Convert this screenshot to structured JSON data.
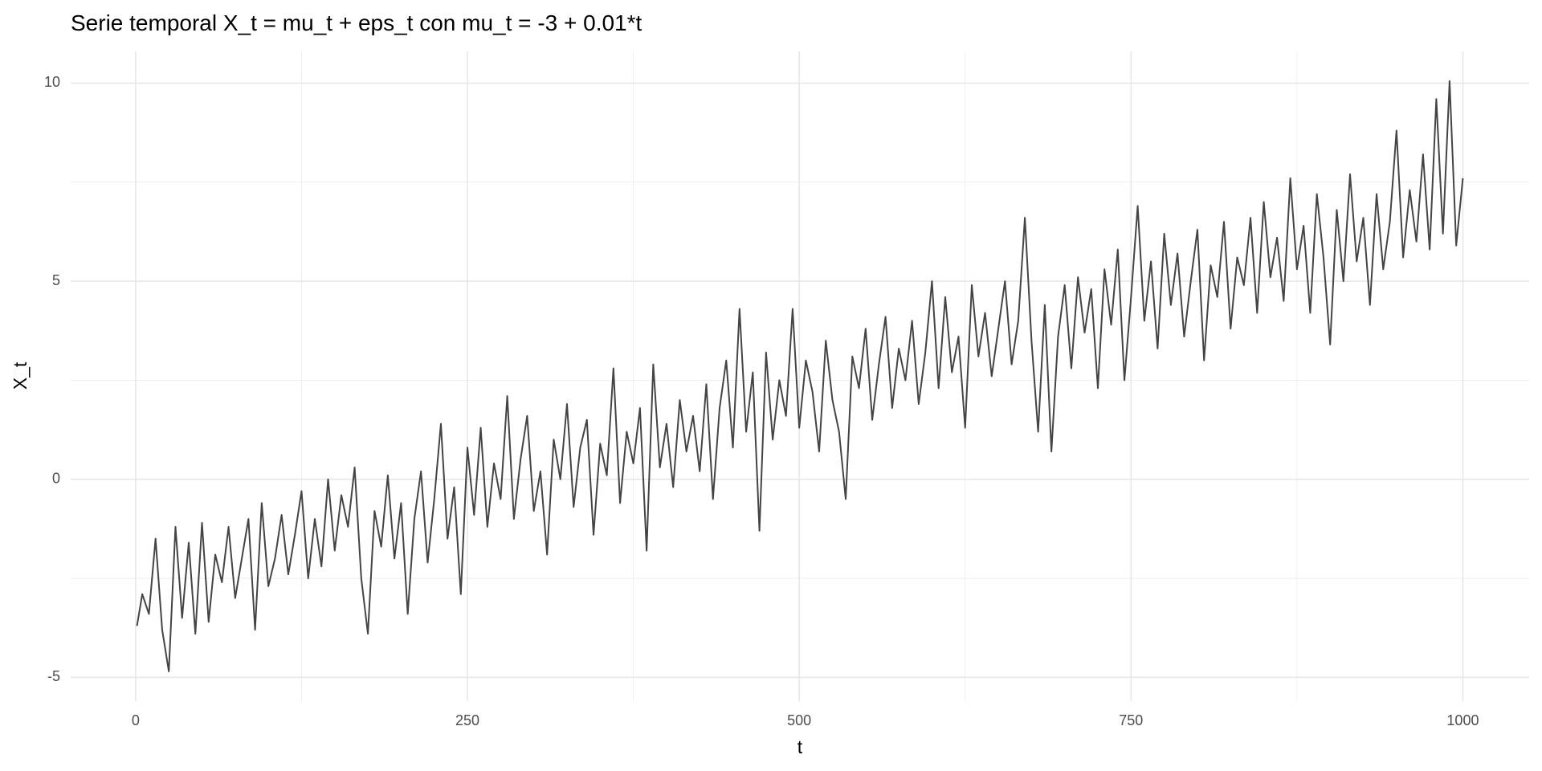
{
  "chart_data": {
    "type": "line",
    "title": "Serie temporal X_t = mu_t + eps_t con mu_t = -3 + 0.01*t",
    "x_label": "t",
    "y_label": "X_t",
    "color": "#444444",
    "x": [
      1,
      5,
      10,
      15,
      20,
      25,
      30,
      35,
      40,
      45,
      50,
      55,
      60,
      65,
      70,
      75,
      80,
      85,
      90,
      95,
      100,
      105,
      110,
      115,
      120,
      125,
      130,
      135,
      140,
      145,
      150,
      155,
      160,
      165,
      170,
      175,
      180,
      185,
      190,
      195,
      200,
      205,
      210,
      215,
      220,
      225,
      230,
      235,
      240,
      245,
      250,
      255,
      260,
      265,
      270,
      275,
      280,
      285,
      290,
      295,
      300,
      305,
      310,
      315,
      320,
      325,
      330,
      335,
      340,
      345,
      350,
      355,
      360,
      365,
      370,
      375,
      380,
      385,
      390,
      395,
      400,
      405,
      410,
      415,
      420,
      425,
      430,
      435,
      440,
      445,
      450,
      455,
      460,
      465,
      470,
      475,
      480,
      485,
      490,
      495,
      500,
      505,
      510,
      515,
      520,
      525,
      530,
      535,
      540,
      545,
      550,
      555,
      560,
      565,
      570,
      575,
      580,
      585,
      590,
      595,
      600,
      605,
      610,
      615,
      620,
      625,
      630,
      635,
      640,
      645,
      650,
      655,
      660,
      665,
      670,
      675,
      680,
      685,
      690,
      695,
      700,
      705,
      710,
      715,
      720,
      725,
      730,
      735,
      740,
      745,
      750,
      755,
      760,
      765,
      770,
      775,
      780,
      785,
      790,
      795,
      800,
      805,
      810,
      815,
      820,
      825,
      830,
      835,
      840,
      845,
      850,
      855,
      860,
      865,
      870,
      875,
      880,
      885,
      890,
      895,
      900,
      905,
      910,
      915,
      920,
      925,
      930,
      935,
      940,
      945,
      950,
      955,
      960,
      965,
      970,
      975,
      980,
      985,
      990,
      995,
      1000
    ],
    "values": [
      -3.7,
      -2.9,
      -3.4,
      -1.5,
      -3.8,
      -4.85,
      -1.2,
      -3.5,
      -1.6,
      -3.9,
      -1.1,
      -3.6,
      -1.9,
      -2.6,
      -1.2,
      -3.0,
      -2.0,
      -1.0,
      -3.8,
      -0.6,
      -2.7,
      -2.0,
      -0.9,
      -2.4,
      -1.4,
      -0.3,
      -2.5,
      -1.0,
      -2.2,
      0.0,
      -1.8,
      -0.4,
      -1.2,
      0.3,
      -2.5,
      -3.9,
      -0.8,
      -1.7,
      0.1,
      -2.0,
      -0.6,
      -3.4,
      -1.0,
      0.2,
      -2.1,
      -0.5,
      1.4,
      -1.5,
      -0.2,
      -2.9,
      0.8,
      -0.9,
      1.3,
      -1.2,
      0.4,
      -0.5,
      2.1,
      -1.0,
      0.5,
      1.6,
      -0.8,
      0.2,
      -1.9,
      1.0,
      0.0,
      1.9,
      -0.7,
      0.8,
      1.5,
      -1.4,
      0.9,
      0.1,
      2.8,
      -0.6,
      1.2,
      0.4,
      1.8,
      -1.8,
      2.9,
      0.3,
      1.4,
      -0.2,
      2.0,
      0.7,
      1.6,
      0.2,
      2.4,
      -0.5,
      1.8,
      3.0,
      0.8,
      4.3,
      1.2,
      2.7,
      -1.3,
      3.2,
      1.0,
      2.5,
      1.6,
      4.3,
      1.3,
      3.0,
      2.2,
      0.7,
      3.5,
      2.0,
      1.2,
      -0.5,
      3.1,
      2.3,
      3.8,
      1.5,
      2.9,
      4.1,
      1.8,
      3.3,
      2.5,
      4.0,
      1.9,
      3.2,
      5.0,
      2.3,
      4.6,
      2.7,
      3.6,
      1.3,
      4.9,
      3.1,
      4.2,
      2.6,
      3.8,
      5.0,
      2.9,
      4.0,
      6.6,
      3.5,
      1.2,
      4.4,
      0.7,
      3.6,
      4.9,
      2.8,
      5.1,
      3.7,
      4.8,
      2.3,
      5.3,
      3.9,
      5.8,
      2.5,
      4.6,
      6.9,
      4.0,
      5.5,
      3.3,
      6.2,
      4.4,
      5.7,
      3.6,
      5.0,
      6.3,
      3.0,
      5.4,
      4.6,
      6.5,
      3.8,
      5.6,
      4.9,
      6.6,
      4.2,
      7.0,
      5.1,
      6.1,
      4.5,
      7.6,
      5.3,
      6.4,
      4.2,
      7.2,
      5.6,
      3.4,
      6.8,
      5.0,
      7.7,
      5.5,
      6.6,
      4.4,
      7.2,
      5.3,
      6.5,
      8.8,
      5.6,
      7.3,
      6.0,
      8.2,
      5.8,
      9.6,
      6.2,
      10.05,
      5.9,
      7.6
    ],
    "xlim": [
      -48.95,
      1049.95
    ],
    "xticks": [
      0,
      250,
      500,
      750,
      1000
    ],
    "x_minor_ticks": [
      125,
      375,
      625,
      875
    ],
    "ylim": [
      -5.6,
      10.8
    ],
    "yticks": [
      -5,
      0,
      5,
      10
    ],
    "y_minor_ticks": [
      -2.5,
      2.5,
      7.5
    ],
    "grid": true
  }
}
